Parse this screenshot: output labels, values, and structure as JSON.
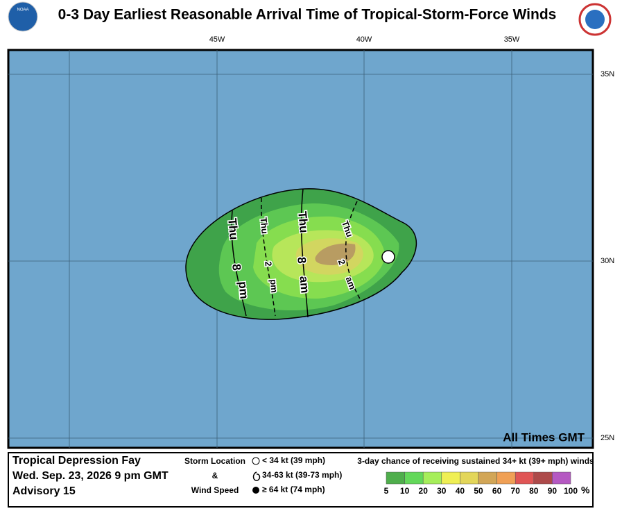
{
  "header": {
    "title": "0-3 Day Earliest Reasonable Arrival Time of Tropical-Storm-Force Winds",
    "logo_left": "NOAA"
  },
  "map": {
    "lon_labels": [
      "45W",
      "40W",
      "35W"
    ],
    "lat_labels": [
      "35N",
      "30N",
      "25N"
    ],
    "note": "All Times GMT",
    "contours": [
      {
        "words": [
          "Thu",
          "8",
          "pm"
        ]
      },
      {
        "words": [
          "Thu",
          "2",
          "pm"
        ]
      },
      {
        "words": [
          "Thu",
          "8",
          "am"
        ]
      },
      {
        "words": [
          "Thu",
          "2",
          "am"
        ]
      }
    ]
  },
  "footer": {
    "storm": [
      "Tropical Depression Fay",
      "Wed. Sep. 23, 2026  9 pm GMT",
      "Advisory 15"
    ],
    "key_title": [
      "Storm Location",
      "&",
      "Wind Speed"
    ],
    "key_items": [
      "< 34 kt (39 mph)",
      "34-63 kt (39-73 mph)",
      "≥ 64 kt (74 mph)"
    ],
    "scale_title": "3-day chance of receiving sustained 34+ kt (39+ mph) winds",
    "scale_labels": [
      5,
      10,
      20,
      30,
      40,
      50,
      60,
      70,
      80,
      90,
      100
    ],
    "scale_unit": "%"
  }
}
